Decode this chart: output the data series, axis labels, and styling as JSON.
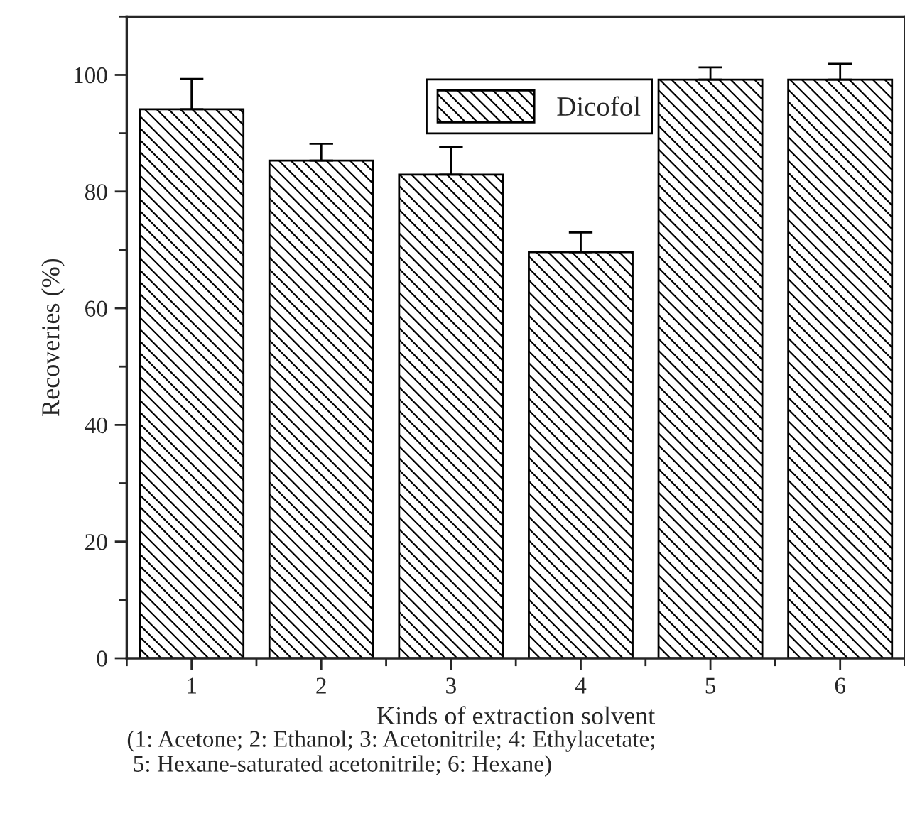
{
  "chart_data": {
    "type": "bar",
    "xlabel": "Kinds of extraction solvent",
    "ylabel": "Recoveries (%)",
    "categories": [
      "1",
      "2",
      "3",
      "4",
      "5",
      "6"
    ],
    "series": [
      {
        "name": "Dicofol",
        "color": "#000000",
        "values": [
          94.1,
          85.3,
          82.9,
          69.6,
          99.2,
          99.2
        ],
        "errors": [
          [
            94.1,
            99.3
          ],
          [
            85.3,
            88.2
          ],
          [
            82.9,
            87.7
          ],
          [
            69.6,
            73.0
          ],
          [
            99.2,
            101.3
          ],
          [
            99.2,
            101.9
          ]
        ]
      }
    ],
    "ylim": [
      0,
      110
    ],
    "yticks": [
      0,
      20,
      40,
      60,
      80,
      100
    ],
    "grid": false,
    "legend": "top",
    "annotations": [
      "(1: Acetone; 2: Ethanol; 3: Acetonitrile; 4: Ethylacetate;\n 5: Hexane-saturated acetonitrile; 6: Hexane)"
    ]
  }
}
